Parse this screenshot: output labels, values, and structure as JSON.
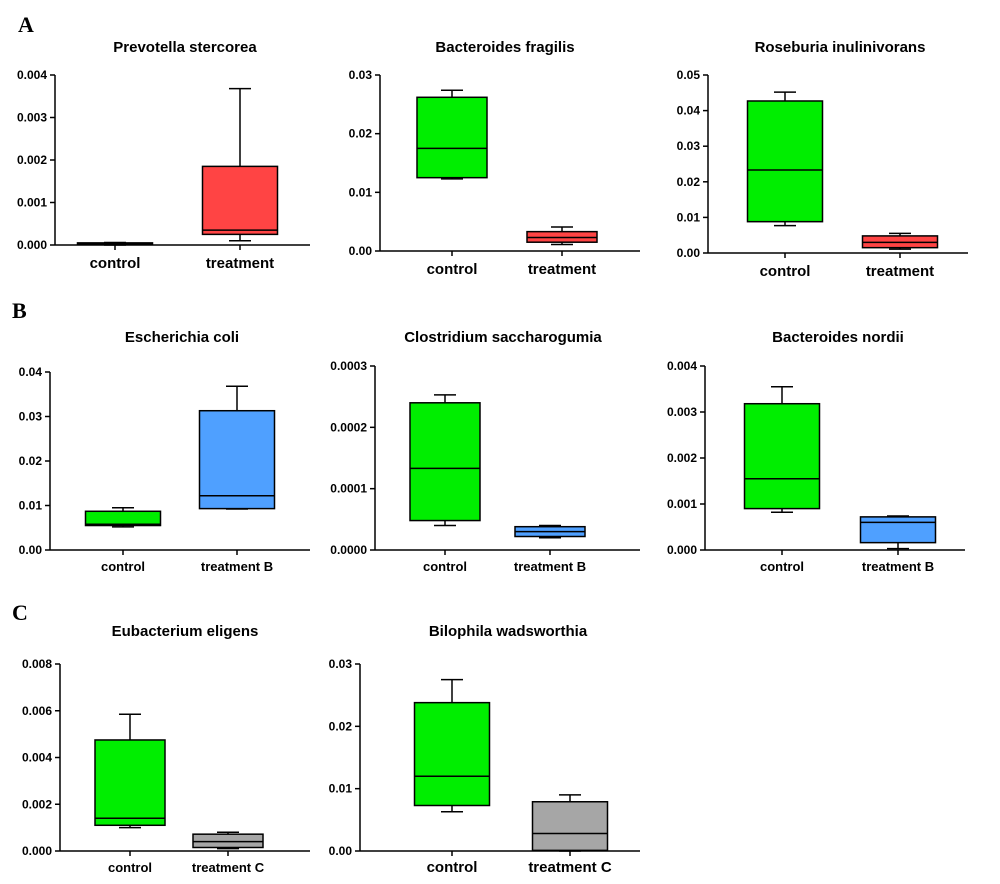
{
  "panels": {
    "A": "A",
    "B": "B",
    "C": "C"
  },
  "colors": {
    "control": "#00ee00",
    "treatment": "#ff4444",
    "treatment_b": "#4fa0ff",
    "treatment_c": "#a6a6a6"
  },
  "chart_data": [
    {
      "type": "box",
      "panel": "A",
      "title": "Prevotella stercorea",
      "ylim": [
        0,
        0.004
      ],
      "yticks": [
        "0.000",
        "0.001",
        "0.002",
        "0.003",
        "0.004"
      ],
      "categories": [
        "control",
        "treatment"
      ],
      "boxes": [
        {
          "name": "control",
          "min": 0.0,
          "q1": 2e-05,
          "median": 3e-05,
          "q3": 5e-05,
          "max": 6e-05,
          "color": "#00ee00"
        },
        {
          "name": "treatment",
          "min": 0.0001,
          "q1": 0.00025,
          "median": 0.00035,
          "q3": 0.00185,
          "max": 0.00368,
          "color": "#ff4444"
        }
      ]
    },
    {
      "type": "box",
      "panel": "A",
      "title": "Bacteroides fragilis",
      "ylim": [
        0,
        0.03
      ],
      "yticks": [
        "0.00",
        "0.01",
        "0.02",
        "0.03"
      ],
      "categories": [
        "control",
        "treatment"
      ],
      "boxes": [
        {
          "name": "control",
          "min": 0.0123,
          "q1": 0.0125,
          "median": 0.0175,
          "q3": 0.0262,
          "max": 0.0274,
          "color": "#00ee00"
        },
        {
          "name": "treatment",
          "min": 0.0011,
          "q1": 0.0015,
          "median": 0.0023,
          "q3": 0.0033,
          "max": 0.0041,
          "color": "#ff4444"
        }
      ]
    },
    {
      "type": "box",
      "panel": "A",
      "title": "Roseburia inulinivorans",
      "ylim": [
        0,
        0.05
      ],
      "yticks": [
        "0.00",
        "0.01",
        "0.02",
        "0.03",
        "0.04",
        "0.05"
      ],
      "categories": [
        "control",
        "treatment"
      ],
      "boxes": [
        {
          "name": "control",
          "min": 0.0077,
          "q1": 0.0088,
          "median": 0.0233,
          "q3": 0.0427,
          "max": 0.0452,
          "color": "#00ee00"
        },
        {
          "name": "treatment",
          "min": 0.0011,
          "q1": 0.0015,
          "median": 0.003,
          "q3": 0.0048,
          "max": 0.0055,
          "color": "#ff4444"
        }
      ]
    },
    {
      "type": "box",
      "panel": "B",
      "title": "Escherichia coli",
      "ylim": [
        0,
        0.04
      ],
      "yticks": [
        "0.00",
        "0.01",
        "0.02",
        "0.03",
        "0.04"
      ],
      "categories": [
        "control",
        "treatment B"
      ],
      "boxes": [
        {
          "name": "control",
          "min": 0.0052,
          "q1": 0.0055,
          "median": 0.0058,
          "q3": 0.0087,
          "max": 0.0095,
          "color": "#00ee00"
        },
        {
          "name": "treatment B",
          "min": 0.0092,
          "q1": 0.0093,
          "median": 0.0122,
          "q3": 0.0313,
          "max": 0.0368,
          "color": "#4fa0ff"
        }
      ]
    },
    {
      "type": "box",
      "panel": "B",
      "title": "Clostridium saccharogumia",
      "ylim": [
        0,
        0.0003
      ],
      "yticks": [
        "0.0000",
        "0.0001",
        "0.0002",
        "0.0003"
      ],
      "categories": [
        "control",
        "treatment B"
      ],
      "boxes": [
        {
          "name": "control",
          "min": 4e-05,
          "q1": 4.8e-05,
          "median": 0.000133,
          "q3": 0.00024,
          "max": 0.000253,
          "color": "#00ee00"
        },
        {
          "name": "treatment B",
          "min": 2e-05,
          "q1": 2.2e-05,
          "median": 3e-05,
          "q3": 3.8e-05,
          "max": 4e-05,
          "color": "#4fa0ff"
        }
      ]
    },
    {
      "type": "box",
      "panel": "B",
      "title": "Bacteroides nordii",
      "ylim": [
        0,
        0.004
      ],
      "yticks": [
        "0.000",
        "0.001",
        "0.002",
        "0.003",
        "0.004"
      ],
      "categories": [
        "control",
        "treatment B"
      ],
      "boxes": [
        {
          "name": "control",
          "min": 0.00082,
          "q1": 0.0009,
          "median": 0.00155,
          "q3": 0.00318,
          "max": 0.00355,
          "color": "#00ee00"
        },
        {
          "name": "treatment B",
          "min": 3e-05,
          "q1": 0.00016,
          "median": 0.0006,
          "q3": 0.00072,
          "max": 0.00074,
          "color": "#4fa0ff"
        }
      ]
    },
    {
      "type": "box",
      "panel": "C",
      "title": "Eubacterium eligens",
      "ylim": [
        0,
        0.008
      ],
      "yticks": [
        "0.000",
        "0.002",
        "0.004",
        "0.006",
        "0.008"
      ],
      "categories": [
        "control",
        "treatment C"
      ],
      "boxes": [
        {
          "name": "control",
          "min": 0.001,
          "q1": 0.0011,
          "median": 0.0014,
          "q3": 0.00475,
          "max": 0.00585,
          "color": "#00ee00"
        },
        {
          "name": "treatment C",
          "min": 0.0001,
          "q1": 0.00015,
          "median": 0.0004,
          "q3": 0.00072,
          "max": 0.0008,
          "color": "#a6a6a6"
        }
      ]
    },
    {
      "type": "box",
      "panel": "C",
      "title": "Bilophila wadsworthia",
      "ylim": [
        0,
        0.03
      ],
      "yticks": [
        "0.00",
        "0.01",
        "0.02",
        "0.03"
      ],
      "categories": [
        "control",
        "treatment C"
      ],
      "boxes": [
        {
          "name": "control",
          "min": 0.0063,
          "q1": 0.0073,
          "median": 0.012,
          "q3": 0.0238,
          "max": 0.0275,
          "color": "#00ee00"
        },
        {
          "name": "treatment C",
          "min": 0.0,
          "q1": 0.0001,
          "median": 0.0028,
          "q3": 0.0079,
          "max": 0.009,
          "color": "#a6a6a6"
        }
      ]
    }
  ]
}
